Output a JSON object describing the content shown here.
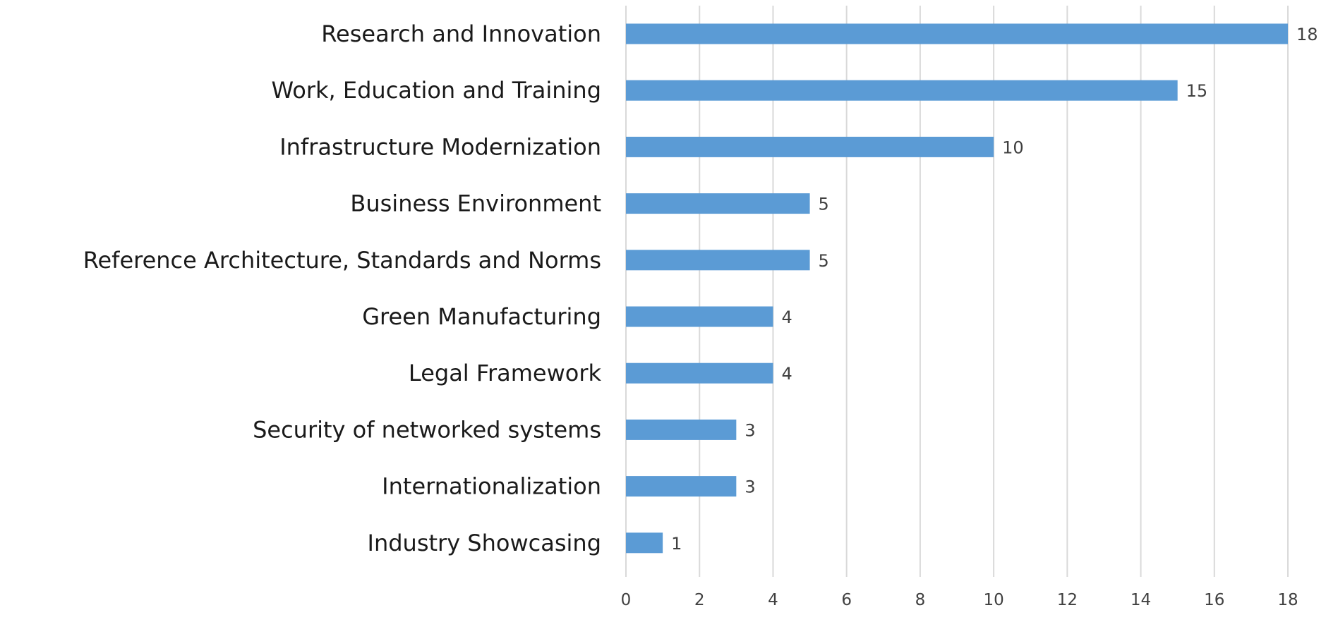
{
  "chart_data": {
    "type": "bar",
    "orientation": "horizontal",
    "title": "",
    "xlabel": "",
    "ylabel": "",
    "categories": [
      "Research and Innovation",
      "Work, Education and Training",
      "Infrastructure Modernization",
      "Business Environment",
      "Reference Architecture, Standards and Norms",
      "Green Manufacturing",
      "Legal Framework",
      "Security of networked systems",
      "Internationalization",
      "Industry Showcasing"
    ],
    "values": [
      18,
      15,
      10,
      5,
      5,
      4,
      4,
      3,
      3,
      1
    ],
    "xlim": [
      0,
      18
    ],
    "xticks": [
      0,
      2,
      4,
      6,
      8,
      10,
      12,
      14,
      16,
      18
    ],
    "grid": true,
    "data_labels": true,
    "legend": "none",
    "bar_color": "#5b9bd5",
    "grid_color": "#d9d9d9"
  }
}
